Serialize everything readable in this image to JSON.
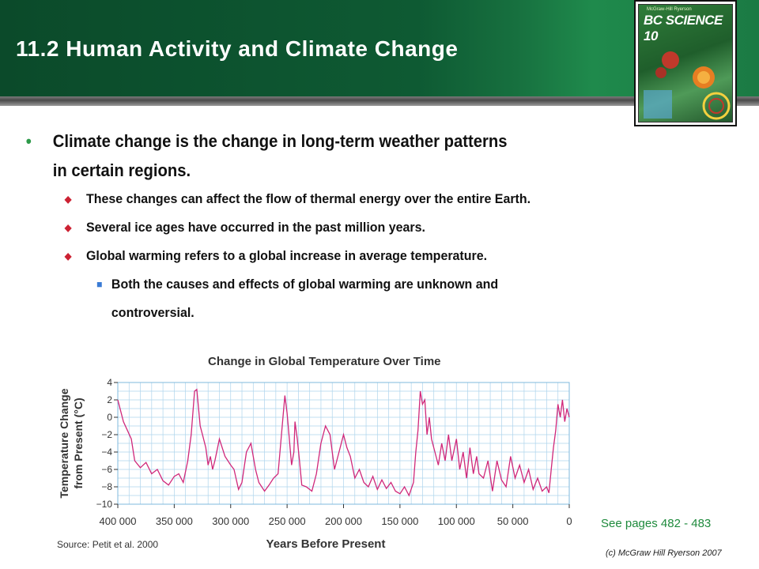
{
  "slide": {
    "title": "11.2 Human Activity and Climate Change",
    "book_title": "BC SCIENCE 10",
    "book_publisher": "McGraw-Hill Ryerson",
    "see_pages": "See pages 482 - 483",
    "copyright": "(c) McGraw Hill Ryerson 2007"
  },
  "bullets": {
    "main_line1": "Climate change is the change in long-term weather patterns",
    "main_line2": "in certain regions.",
    "sub1": "These changes can affect the flow of thermal energy over the entire Earth.",
    "sub2": "Several ice ages have occurred in the past million years.",
    "sub3": "Global warming refers to a global increase in average temperature.",
    "subsub_line1": "Both the causes and effects of global warming are unknown and",
    "subsub_line2": "controversial."
  },
  "colors": {
    "header_green": "#0e5a33",
    "bullet_green": "#2e9a4a",
    "series": "#d0287a",
    "grid": "#aed4ec"
  },
  "chart_data": {
    "type": "line",
    "title": "Change in Global Temperature Over Time",
    "xlabel": "Years Before Present",
    "ylabel": "Temperature Change from Present (°C)",
    "source": "Source: Petit et al. 2000",
    "xlim": [
      400000,
      0
    ],
    "ylim": [
      -10,
      4
    ],
    "x_ticks": [
      400000,
      350000,
      300000,
      250000,
      200000,
      150000,
      100000,
      50000,
      0
    ],
    "x_tick_labels": [
      "400 000",
      "350 000",
      "300 000",
      "250 000",
      "200 000",
      "150 000",
      "100 000",
      "50 000",
      "0"
    ],
    "y_ticks": [
      4,
      2,
      0,
      -2,
      -4,
      -6,
      -8,
      -10
    ],
    "y_tick_labels": [
      "4",
      "2",
      "0",
      "−2",
      "−4",
      "−6",
      "−8",
      "−10"
    ],
    "grid": true,
    "series": [
      {
        "x": [
          400000,
          395000,
          388000,
          385000,
          380000,
          375000,
          370000,
          365000,
          360000,
          355000,
          350000,
          346000,
          342000,
          338000,
          335000,
          332000,
          330000,
          327000,
          325000,
          322000,
          320000,
          318000,
          316000,
          314000,
          310000,
          305000,
          300000,
          297000,
          293000,
          290000,
          286000,
          282000,
          278000,
          275000,
          270000,
          266000,
          262000,
          258000,
          255000,
          252000,
          250000,
          246000,
          244000,
          243000,
          241000,
          239000,
          237000,
          233000,
          228000,
          224000,
          220000,
          216000,
          212000,
          208000,
          204000,
          200000,
          197000,
          194000,
          190000,
          186000,
          182000,
          178000,
          174000,
          170000,
          166000,
          162000,
          158000,
          154000,
          150000,
          146000,
          142000,
          138000,
          136000,
          134000,
          132000,
          130000,
          128000,
          126000,
          124000,
          122000,
          119000,
          116000,
          113000,
          110000,
          107000,
          104000,
          100000,
          97000,
          94000,
          91000,
          88000,
          85000,
          82000,
          80000,
          76000,
          72000,
          68000,
          64000,
          60000,
          56000,
          52000,
          48000,
          44000,
          40000,
          36000,
          32000,
          28000,
          24000,
          20000,
          18000,
          16000,
          14000,
          12000,
          10000,
          8000,
          6000,
          4000,
          2000,
          0
        ],
        "y": [
          2,
          -0.5,
          -2.5,
          -5,
          -5.8,
          -5.2,
          -6.5,
          -6,
          -7.3,
          -7.8,
          -6.8,
          -6.5,
          -7.5,
          -5,
          -2,
          3,
          3.2,
          -1,
          -2,
          -3.5,
          -5.5,
          -4.5,
          -6,
          -5,
          -2.5,
          -4.5,
          -5.5,
          -6,
          -8.3,
          -7.5,
          -4,
          -3,
          -6,
          -7.5,
          -8.5,
          -7.8,
          -7,
          -6.5,
          -2,
          2.5,
          0.5,
          -5.5,
          -4,
          -0.5,
          -2.5,
          -5,
          -7.8,
          -8,
          -8.5,
          -6.5,
          -3,
          -1,
          -2,
          -6,
          -4,
          -2,
          -3.5,
          -4.5,
          -7,
          -6,
          -7.5,
          -8,
          -6.8,
          -8.3,
          -7.2,
          -8.2,
          -7.5,
          -8.5,
          -8.8,
          -8,
          -9,
          -7.5,
          -4,
          -1.5,
          3,
          1.5,
          2,
          -2,
          0,
          -2.5,
          -4,
          -5.5,
          -3,
          -5,
          -2,
          -5,
          -2.5,
          -6,
          -4,
          -7,
          -3.5,
          -6.5,
          -4.5,
          -6.5,
          -7,
          -5,
          -8.5,
          -5,
          -7.2,
          -8,
          -4.5,
          -7,
          -5.5,
          -7.5,
          -6,
          -8.3,
          -7,
          -8.5,
          -8,
          -8.7,
          -6,
          -3.5,
          -1.5,
          1.5,
          0,
          2,
          -0.5,
          1,
          0
        ]
      }
    ]
  }
}
